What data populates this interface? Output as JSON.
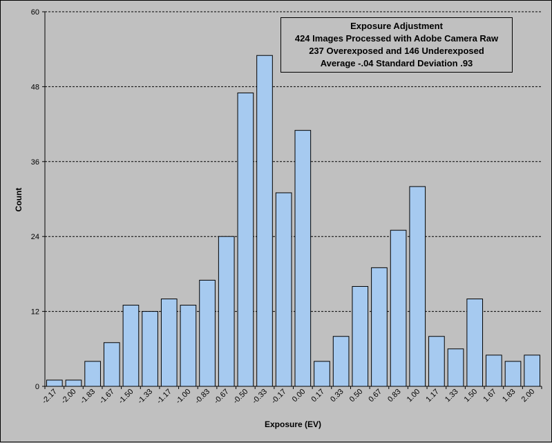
{
  "chart_data": {
    "type": "bar",
    "title_lines": [
      "Exposure Adjustment",
      "424 Images Processed with Adobe Camera Raw",
      "237 Overexposed and 146 Underexposed",
      "Average -.04 Standard Deviation .93"
    ],
    "xlabel": "Exposure (EV)",
    "ylabel": "Count",
    "ylim": [
      0,
      60
    ],
    "yticks": [
      "0",
      "12",
      "24",
      "36",
      "48",
      "60"
    ],
    "grid": "horizontal dashed",
    "legend": "none",
    "categories": [
      "-2.17",
      "-2.00",
      "-1.83",
      "-1.67",
      "-1.50",
      "-1.33",
      "-1.17",
      "-1.00",
      "-0.83",
      "-0.67",
      "-0.50",
      "-0.33",
      "-0.17",
      "0.00",
      "0.17",
      "0.33",
      "0.50",
      "0.67",
      "0.83",
      "1.00",
      "1.17",
      "1.33",
      "1.50",
      "1.67",
      "1.83",
      "2.00"
    ],
    "values": [
      1,
      1,
      4,
      7,
      13,
      12,
      14,
      13,
      17,
      24,
      47,
      53,
      31,
      41,
      4,
      8,
      16,
      19,
      25,
      32,
      8,
      6,
      14,
      5,
      4,
      5
    ],
    "colors": {
      "bar_fill": "#a6caf0",
      "bar_stroke": "#000000",
      "plot_bg": "#c0c0c0",
      "grid": "#000000"
    }
  }
}
